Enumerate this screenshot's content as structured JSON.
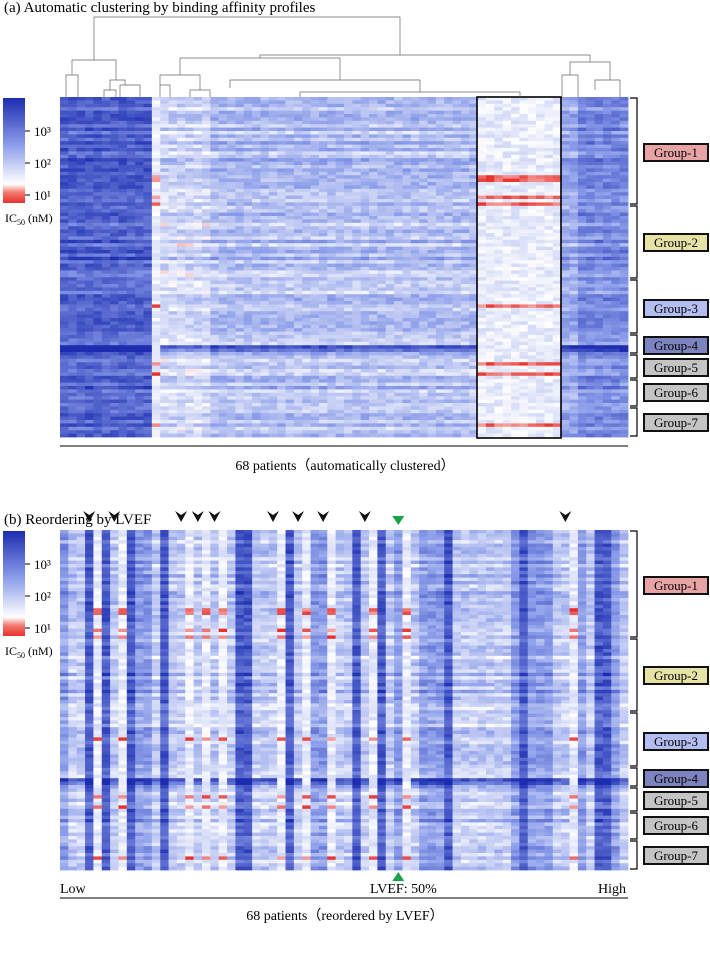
{
  "panel_a": {
    "title": "(a)   Automatic clustering by binding affinity profiles",
    "caption": "68 patients（automatically clustered）"
  },
  "panel_b": {
    "title": "(b)   Reordering by LVEF",
    "caption": "68 patients（reordered by LVEF）",
    "low": "Low",
    "high": "High",
    "lvef_marker": "LVEF: 50%"
  },
  "legend": {
    "ticks": [
      "10³",
      "10²",
      "10¹"
    ],
    "label_main": "IC",
    "label_sub": "50",
    "label_unit": " (nM)"
  },
  "groups": [
    {
      "label": "Group-1",
      "color": "#e8a4a4"
    },
    {
      "label": "Group-2",
      "color": "#e6e2a6"
    },
    {
      "label": "Group-3",
      "color": "#b4bdf0"
    },
    {
      "label": "Group-4",
      "color": "#7d83bf"
    },
    {
      "label": "Group-5",
      "color": "#c4c4c4"
    },
    {
      "label": "Group-6",
      "color": "#c4c4c4"
    },
    {
      "label": "Group-7",
      "color": "#c4c4c4"
    }
  ],
  "chart_data": {
    "type": "heatmap",
    "columns": 68,
    "column_label": "patients",
    "color_scale": {
      "min_label": "10¹",
      "max_label": "10³",
      "unit": "IC50 (nM)",
      "low_color": "#e8302a",
      "mid_color": "#ffffff",
      "high_color": "#1c2db0"
    },
    "panel_b_arrow_columns": [
      4,
      7,
      15,
      17,
      19,
      26,
      29,
      32,
      37,
      61
    ],
    "panel_b_lvef50_column": 41
  }
}
